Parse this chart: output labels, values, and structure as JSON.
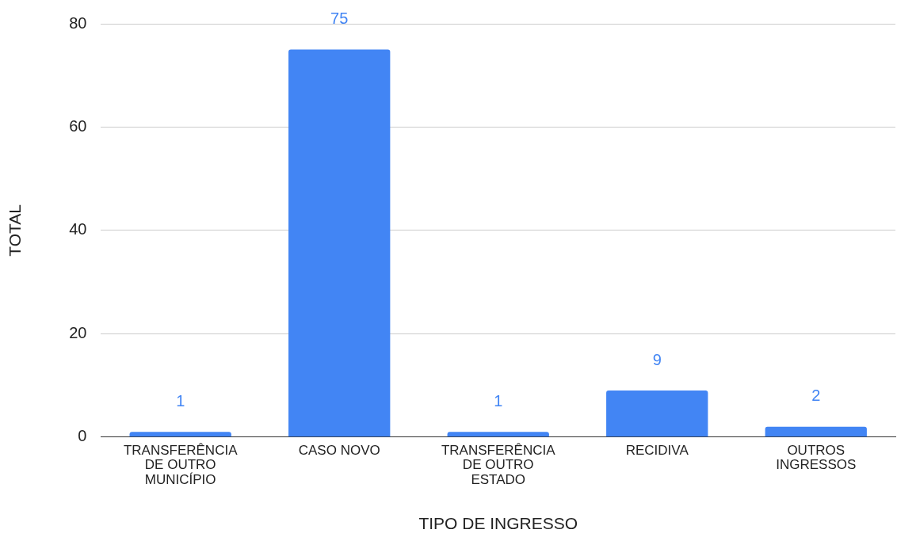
{
  "chart_data": {
    "type": "bar",
    "xlabel": "TIPO DE INGRESSO",
    "ylabel": "TOTAL",
    "categories": [
      "TRANSFERÊNCIA DE OUTRO MUNICÍPIO",
      "CASO NOVO",
      "TRANSFERÊNCIA DE OUTRO ESTADO",
      "RECIDIVA",
      "OUTROS INGRESSOS"
    ],
    "values": [
      1,
      75,
      1,
      9,
      2
    ],
    "color": "#4285f4",
    "ylim": [
      0,
      80
    ],
    "yticks": [
      0,
      20,
      40,
      60,
      80
    ],
    "grid": "y",
    "data_labels": true,
    "legend": false
  }
}
